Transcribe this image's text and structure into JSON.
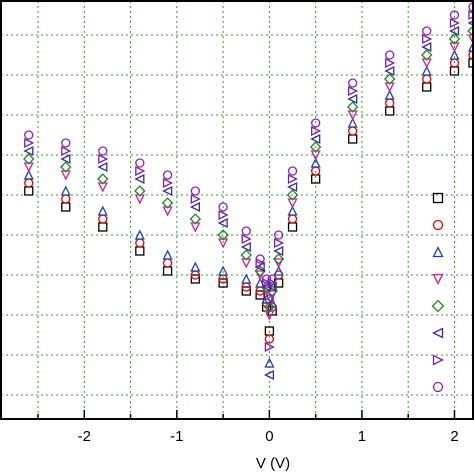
{
  "chart_data": {
    "type": "scatter",
    "xlabel": "V (V)",
    "ylabel": "",
    "title": "",
    "xlim": [
      -2.9,
      2.2
    ],
    "ylim": [
      -12.6,
      -2.15
    ],
    "x_ticks": [
      {
        "value": -2,
        "label": "-2"
      },
      {
        "value": -1,
        "label": "-1"
      },
      {
        "value": 0,
        "label": "0"
      },
      {
        "value": 1,
        "label": "1"
      },
      {
        "value": 2,
        "label": "2"
      }
    ],
    "grid": true,
    "legend_position": "right",
    "series": [
      {
        "marker": "square",
        "color": "#000000",
        "x": [
          -2.6,
          -2.2,
          -1.8,
          -1.4,
          -1.1,
          -0.8,
          -0.5,
          -0.25,
          -0.1,
          -0.03,
          0,
          0.03,
          0.1,
          0.25,
          0.5,
          0.9,
          1.3,
          1.7,
          2.0,
          2.2
        ],
        "y": [
          -6.9,
          -7.3,
          -7.8,
          -8.4,
          -8.9,
          -9.1,
          -9.2,
          -9.4,
          -9.5,
          -9.8,
          -10.4,
          -9.9,
          -9.2,
          -7.8,
          -6.6,
          -5.6,
          -4.9,
          -4.3,
          -3.9,
          -3.7
        ]
      },
      {
        "marker": "circle",
        "color": "#e60000",
        "x": [
          -2.6,
          -2.2,
          -1.8,
          -1.4,
          -1.1,
          -0.8,
          -0.5,
          -0.25,
          -0.1,
          -0.03,
          0,
          0.03,
          0.1,
          0.25,
          0.5,
          0.9,
          1.3,
          1.7,
          2.0,
          2.2
        ],
        "y": [
          -6.7,
          -7.1,
          -7.6,
          -8.2,
          -8.7,
          -9.0,
          -9.1,
          -9.3,
          -9.4,
          -9.7,
          -10.6,
          -9.8,
          -9.0,
          -7.6,
          -6.4,
          -5.4,
          -4.7,
          -4.1,
          -3.7,
          -3.5
        ]
      },
      {
        "marker": "triangle-up",
        "color": "#1a3fb3",
        "x": [
          -2.6,
          -2.2,
          -1.8,
          -1.4,
          -1.1,
          -0.8,
          -0.5,
          -0.25,
          -0.1,
          -0.03,
          0,
          0.03,
          0.1,
          0.25,
          0.5,
          0.9,
          1.3,
          1.7,
          2.0,
          2.2
        ],
        "y": [
          -6.5,
          -6.9,
          -7.4,
          -8.0,
          -8.5,
          -8.8,
          -8.9,
          -9.1,
          -9.2,
          -9.6,
          -11.2,
          -9.7,
          -8.9,
          -7.4,
          -6.2,
          -5.2,
          -4.5,
          -3.9,
          -3.5,
          -3.3
        ]
      },
      {
        "marker": "triangle-down",
        "color": "#d6189c",
        "x": [
          -2.6,
          -2.2,
          -1.8,
          -1.4,
          -1.1,
          -0.8,
          -0.5,
          -0.25,
          -0.1,
          -0.03,
          0,
          0.03,
          0.1,
          0.25,
          0.5,
          0.9,
          1.3,
          1.7,
          2.0,
          2.2
        ],
        "y": [
          -6.3,
          -6.5,
          -6.8,
          -7.1,
          -7.4,
          -7.8,
          -8.2,
          -8.7,
          -9.0,
          -9.4,
          -10.0,
          -9.5,
          -8.7,
          -7.2,
          -6.0,
          -5.0,
          -4.3,
          -3.7,
          -3.3,
          -3.1
        ]
      },
      {
        "marker": "diamond",
        "color": "#1a8a1a",
        "x": [
          -2.6,
          -2.2,
          -1.8,
          -1.4,
          -1.1,
          -0.8,
          -0.5,
          -0.25,
          -0.1,
          -0.03,
          0,
          0.03,
          0.1,
          0.25,
          0.5,
          0.9,
          1.3,
          1.7,
          2.0,
          2.2
        ],
        "y": [
          -6.1,
          -6.3,
          -6.6,
          -6.9,
          -7.2,
          -7.6,
          -8.0,
          -8.5,
          -8.9,
          -9.3,
          -9.8,
          -9.4,
          -8.6,
          -7.0,
          -5.8,
          -4.8,
          -4.1,
          -3.5,
          -3.1,
          -2.9
        ]
      },
      {
        "marker": "triangle-left",
        "color": "#3a2aa0",
        "x": [
          -2.6,
          -2.2,
          -1.8,
          -1.4,
          -1.1,
          -0.8,
          -0.5,
          -0.25,
          -0.1,
          -0.03,
          0,
          0.03,
          0.1,
          0.25,
          0.5,
          0.9,
          1.3,
          1.7,
          2.0,
          2.2
        ],
        "y": [
          -5.9,
          -6.1,
          -6.3,
          -6.6,
          -6.9,
          -7.3,
          -7.7,
          -8.3,
          -8.8,
          -9.3,
          -11.5,
          -9.3,
          -8.4,
          -6.8,
          -5.6,
          -4.6,
          -3.9,
          -3.3,
          -2.9,
          -2.7
        ]
      },
      {
        "marker": "triangle-right",
        "color": "#7a1fa8",
        "x": [
          -2.6,
          -2.2,
          -1.8,
          -1.4,
          -1.1,
          -0.8,
          -0.5,
          -0.25,
          -0.1,
          -0.03,
          0,
          0.03,
          0.1,
          0.25,
          0.5,
          0.9,
          1.3,
          1.7,
          2.0,
          2.2
        ],
        "y": [
          -5.7,
          -5.9,
          -6.1,
          -6.4,
          -6.7,
          -7.1,
          -7.5,
          -8.1,
          -8.7,
          -9.2,
          -10.8,
          -9.2,
          -8.2,
          -6.6,
          -5.4,
          -4.4,
          -3.7,
          -3.1,
          -2.7,
          -2.5
        ]
      },
      {
        "marker": "circle",
        "color": "#8a1fc0",
        "x": [
          -2.6,
          -2.2,
          -1.8,
          -1.4,
          -1.1,
          -0.8,
          -0.5,
          -0.25,
          -0.1,
          -0.03,
          0,
          0.03,
          0.1,
          0.25,
          0.5,
          0.9,
          1.3,
          1.7,
          2.0,
          2.2
        ],
        "y": [
          -5.5,
          -5.7,
          -5.9,
          -6.2,
          -6.5,
          -6.9,
          -7.3,
          -7.9,
          -8.6,
          -9.1,
          -9.6,
          -9.1,
          -8.0,
          -6.4,
          -5.2,
          -4.2,
          -3.5,
          -2.9,
          -2.5,
          -2.3
        ]
      }
    ]
  }
}
